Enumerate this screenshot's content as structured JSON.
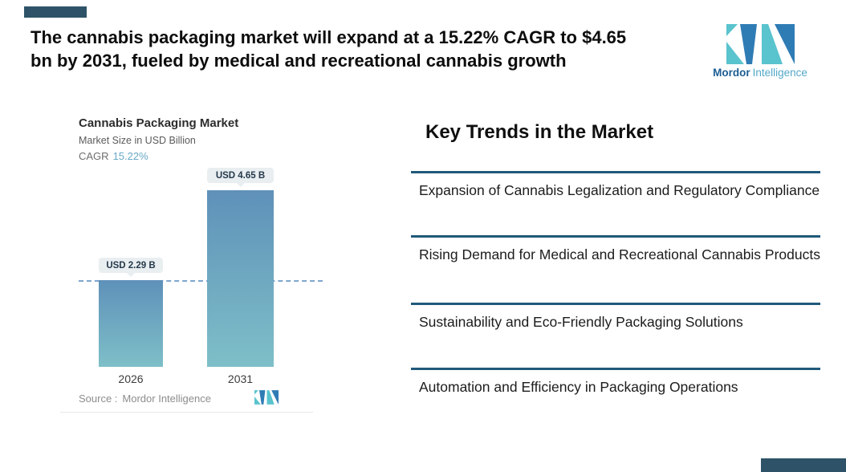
{
  "headline": {
    "line1": "The cannabis packaging market will expand at a 15.22% CAGR to $4.65",
    "line2": "bn by 2031, fueled by medical and recreational cannabis growth"
  },
  "brand": {
    "name_bold": "Mordor",
    "name_light": "Intelligence"
  },
  "chart": {
    "title": "Cannabis Packaging Market",
    "subtitle": "Market Size in USD Billion",
    "cagr_label": "CAGR",
    "cagr_value": "15.22%",
    "source_label": "Source :",
    "source_name": "Mordor Intelligence"
  },
  "chart_data": {
    "type": "bar",
    "title": "Cannabis Packaging Market",
    "ylabel": "Market Size in USD Billion",
    "categories": [
      "2026",
      "2031"
    ],
    "values": [
      2.29,
      4.65
    ],
    "value_labels": [
      "USD 2.29 B",
      "USD 4.65 B"
    ],
    "unit": "USD Billion",
    "cagr_percent": 15.22,
    "baseline_value": 2.29,
    "ylim": [
      0,
      4.65
    ],
    "grid": false,
    "legend": false,
    "annotations": [
      "horizontal dashed reference line at the 2026 value (USD 2.29 B)"
    ]
  },
  "trends": {
    "heading": "Key Trends in the Market",
    "items": [
      "Expansion of Cannabis Legalization and Regulatory Compliance",
      "Rising Demand for Medical and Recreational Cannabis Products",
      "Sustainability and Eco-Friendly Packaging Solutions",
      "Automation and Efficiency in Packaging Operations"
    ]
  },
  "colors": {
    "corner_accent": "#2E5368",
    "accent_rule": "#20597A",
    "bar_top": "#5F91B9",
    "bar_bottom": "#7EBFC8",
    "cagr_blue": "#69A9C8",
    "dashed_line": "#7FA6CF",
    "pill_bg": "#E9EEF1",
    "brand_blue": "#2F7CB5",
    "brand_teal": "#59C3CE",
    "brand_blue_dark": "#1C5E94",
    "brand_teal_dark": "#53A8C8"
  }
}
